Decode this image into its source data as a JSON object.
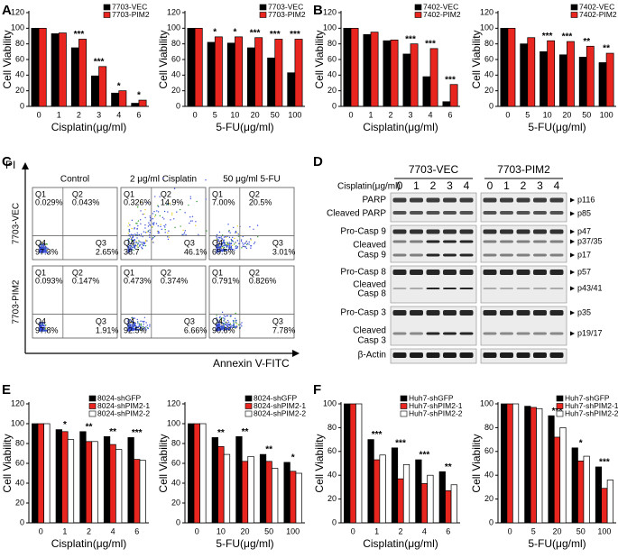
{
  "panel_labels": [
    "A",
    "B",
    "C",
    "D",
    "E",
    "F"
  ],
  "chart_data": [
    {
      "type": "bar",
      "x_label": "Cisplatin(μg/ml)",
      "y_label": "Cell Viability",
      "categories": [
        "0",
        "1",
        "2",
        "3",
        "4",
        "6"
      ],
      "series": [
        {
          "name": "7703-VEC",
          "color": "#000000",
          "values": [
            100,
            93,
            75,
            39,
            17,
            4
          ]
        },
        {
          "name": "7703-PIM2",
          "color": "#e8251e",
          "values": [
            100,
            94,
            86,
            51,
            20,
            8
          ]
        }
      ],
      "annotations": [
        null,
        null,
        "***",
        "***",
        "*",
        "*"
      ],
      "ylim": [
        0,
        120
      ],
      "yticks": [
        0,
        20,
        40,
        60,
        80,
        100,
        120
      ],
      "legend": "upper right"
    },
    {
      "type": "bar",
      "x_label": "5-FU(μg/ml)",
      "y_label": "Cell Viability",
      "categories": [
        "0",
        "5",
        "10",
        "20",
        "50",
        "100"
      ],
      "series": [
        {
          "name": "7703-VEC",
          "color": "#000000",
          "values": [
            100,
            82,
            81,
            75,
            62,
            43
          ]
        },
        {
          "name": "7703-PIM2",
          "color": "#e8251e",
          "values": [
            100,
            89,
            89,
            88,
            86,
            86
          ]
        }
      ],
      "annotations": [
        null,
        "*",
        "*",
        "***",
        "***",
        "***"
      ],
      "ylim": [
        0,
        120
      ],
      "yticks": [
        0,
        20,
        40,
        60,
        80,
        100,
        120
      ],
      "legend": "upper right"
    },
    {
      "type": "bar",
      "x_label": "Cisplatin(μg/ml)",
      "y_label": "Cell Viability",
      "categories": [
        "0",
        "1",
        "2",
        "3",
        "4",
        "6"
      ],
      "series": [
        {
          "name": "7402-VEC",
          "color": "#000000",
          "values": [
            100,
            92,
            84,
            67,
            38,
            6
          ]
        },
        {
          "name": "7402-PIM2",
          "color": "#e8251e",
          "values": [
            100,
            95,
            85,
            80,
            74,
            28
          ]
        }
      ],
      "annotations": [
        null,
        null,
        null,
        "***",
        "***",
        "***"
      ],
      "ylim": [
        0,
        120
      ],
      "yticks": [
        0,
        20,
        40,
        60,
        80,
        100,
        120
      ],
      "legend": "upper right"
    },
    {
      "type": "bar",
      "x_label": "5-FU(μg/ml)",
      "y_label": "Cell Viability",
      "categories": [
        "0",
        "5",
        "10",
        "20",
        "50",
        "100"
      ],
      "series": [
        {
          "name": "7402-VEC",
          "color": "#000000",
          "values": [
            100,
            80,
            70,
            66,
            63,
            56
          ]
        },
        {
          "name": "7402-PIM2",
          "color": "#e8251e",
          "values": [
            100,
            88,
            84,
            83,
            77,
            68
          ]
        }
      ],
      "annotations": [
        null,
        null,
        "***",
        "***",
        "**",
        "**"
      ],
      "ylim": [
        0,
        120
      ],
      "yticks": [
        0,
        20,
        40,
        60,
        80,
        100,
        120
      ],
      "legend": "upper right"
    },
    {
      "type": "bar",
      "x_label": "Cisplatin(μg/ml)",
      "y_label": "Cell Viability",
      "categories": [
        "0",
        "1",
        "2",
        "4",
        "6"
      ],
      "series": [
        {
          "name": "8024-shGFP",
          "color": "#000000",
          "values": [
            100,
            94,
            92,
            87,
            86
          ]
        },
        {
          "name": "8024-shPIM2-1",
          "color": "#e8251e",
          "values": [
            100,
            92,
            82,
            79,
            64
          ]
        },
        {
          "name": "8024-shPIM2-2",
          "color": "#ffffff",
          "values": [
            100,
            84,
            82,
            74,
            63
          ]
        }
      ],
      "annotations": [
        null,
        "*",
        "**",
        "**",
        "***"
      ],
      "ylim": [
        0,
        120
      ],
      "yticks": [
        0,
        20,
        40,
        60,
        80,
        100,
        120
      ],
      "legend": "upper right"
    },
    {
      "type": "bar",
      "x_label": "5-FU(μg/ml)",
      "y_label": "Cell Viability",
      "categories": [
        "0",
        "10",
        "20",
        "50",
        "100"
      ],
      "series": [
        {
          "name": "8024-shGFP",
          "color": "#000000",
          "values": [
            100,
            86,
            87,
            69,
            61
          ]
        },
        {
          "name": "8024-shPIM2-1",
          "color": "#e8251e",
          "values": [
            100,
            77,
            62,
            62,
            52
          ]
        },
        {
          "name": "8024-shPIM2-2",
          "color": "#ffffff",
          "values": [
            100,
            69,
            67,
            55,
            50
          ]
        }
      ],
      "annotations": [
        null,
        "**",
        "**",
        "**",
        "*"
      ],
      "ylim": [
        0,
        120
      ],
      "yticks": [
        0,
        20,
        40,
        60,
        80,
        100,
        120
      ],
      "legend": "upper right"
    },
    {
      "type": "bar",
      "x_label": "Cisplatin(μg/ml)",
      "y_label": "Cell Viability",
      "categories": [
        "0",
        "1",
        "2",
        "4",
        "6"
      ],
      "series": [
        {
          "name": "Huh7-shGFP",
          "color": "#000000",
          "values": [
            100,
            70,
            63,
            53,
            43
          ]
        },
        {
          "name": "Huh7-shPIM2-1",
          "color": "#e8251e",
          "values": [
            100,
            53,
            37,
            33,
            27
          ]
        },
        {
          "name": "Huh7-shPIM2-2",
          "color": "#ffffff",
          "values": [
            100,
            57,
            49,
            40,
            32
          ]
        }
      ],
      "annotations": [
        null,
        "***",
        "***",
        "***",
        "**"
      ],
      "ylim": [
        0,
        100
      ],
      "yticks": [
        0,
        20,
        40,
        60,
        80,
        100
      ],
      "legend": "upper right"
    },
    {
      "type": "bar",
      "x_label": "5-FU(μg/ml)",
      "y_label": "Cell Viability",
      "categories": [
        "0",
        "5",
        "20",
        "50",
        "100"
      ],
      "series": [
        {
          "name": "Huh7-shGFP",
          "color": "#000000",
          "values": [
            100,
            98,
            90,
            63,
            47
          ]
        },
        {
          "name": "Huh7-shPIM2-1",
          "color": "#e8251e",
          "values": [
            100,
            97,
            72,
            52,
            29
          ]
        },
        {
          "name": "Huh7-shPIM2-2",
          "color": "#ffffff",
          "values": [
            100,
            96,
            80,
            56,
            36
          ]
        }
      ],
      "annotations": [
        null,
        null,
        "***",
        "*",
        "***"
      ],
      "ylim": [
        0,
        100
      ],
      "yticks": [
        0,
        20,
        40,
        60,
        80,
        100
      ],
      "legend": "upper right"
    }
  ],
  "flow": {
    "y_label": "PI",
    "x_label": "Annexin V-FITC",
    "columns": [
      "Control",
      "2 μg/ml Cisplatin",
      "50 μg/ml 5-FU"
    ],
    "rows": [
      "7703-VEC",
      "7703-PIM2"
    ],
    "quadrants": [
      "Q1",
      "Q2",
      "Q3",
      "Q4"
    ],
    "plots": [
      [
        [
          "0.029%",
          "0.043%",
          "2.65%",
          "97.3%"
        ],
        [
          "0.326%",
          "14.9%",
          "46.1%",
          "38.7"
        ],
        [
          "7.00%",
          "20.5%",
          "3.01%",
          "69.5%"
        ]
      ],
      [
        [
          "0.093%",
          "0.147%",
          "1.91%",
          "97.8%"
        ],
        [
          "0.473%",
          "0.374%",
          "6.66%",
          "92.5%"
        ],
        [
          "0.791%",
          "0.826%",
          "7.78%",
          "90.6%"
        ]
      ]
    ]
  },
  "blot": {
    "treatment": "Cisplatin(μg/ml)",
    "groups": [
      "7703-VEC",
      "7703-PIM2"
    ],
    "lanes": [
      "0",
      "1",
      "2",
      "3",
      "4"
    ],
    "blocks": [
      {
        "labels": [
          [
            "PARP"
          ],
          [
            "Cleaved PARP"
          ]
        ],
        "markers": [
          "p116",
          "p85"
        ]
      },
      {
        "labels": [
          [
            "Pro-Casp 9"
          ],
          [
            "Cleaved",
            "Casp 9"
          ]
        ],
        "markers": [
          "p47",
          "p37/35",
          "p17"
        ]
      },
      {
        "labels": [
          [
            "Pro-Casp 8"
          ],
          [
            "Cleaved",
            "Casp 8"
          ]
        ],
        "markers": [
          "p57",
          "p43/41"
        ]
      },
      {
        "labels": [
          [
            "Pro-Casp 3"
          ],
          [
            "Cleaved",
            "Casp 3"
          ]
        ],
        "markers": [
          "p35",
          "p19/17"
        ]
      },
      {
        "labels": [
          [
            "β-Actin"
          ]
        ]
      }
    ]
  }
}
